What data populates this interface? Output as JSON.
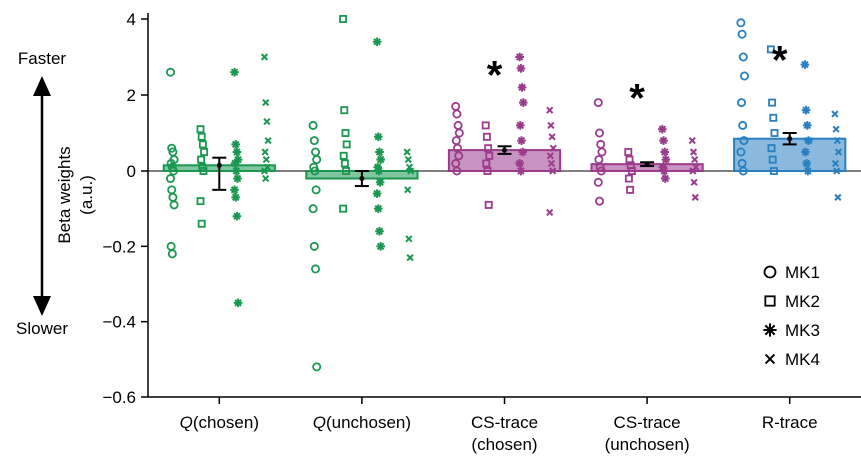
{
  "chart_data": {
    "type": "bar",
    "ylabel": "Beta weights",
    "ylabel_unit": "(a.u.)",
    "direction_labels": {
      "top": "Faster",
      "bottom": "Slower"
    },
    "y_ticks": [
      {
        "value": 4,
        "label": "4"
      },
      {
        "value": 2,
        "label": "2"
      },
      {
        "value": 0,
        "label": "0"
      },
      {
        "value": -0.2,
        "label": "−0.2"
      },
      {
        "value": -0.4,
        "label": "−0.4"
      },
      {
        "value": -0.6,
        "label": "−0.6"
      }
    ],
    "y_scale_note": "broken scale: 0 to 4 above zero, 0 to -0.6 below zero",
    "categories": [
      {
        "name": "Q(chosen)",
        "italic_prefix": "Q",
        "rest": "(chosen)",
        "line2": "",
        "color": "#1a9850",
        "mean": 0.15,
        "sem": 0.2,
        "significant": false
      },
      {
        "name": "Q(unchosen)",
        "italic_prefix": "Q",
        "rest": "(unchosen)",
        "line2": "",
        "color": "#1a9850",
        "mean": -0.02,
        "sem": 0.02,
        "significant": false
      },
      {
        "name": "CS-trace (chosen)",
        "italic_prefix": "",
        "rest": "CS-trace",
        "line2": "(chosen)",
        "color": "#9b3b8c",
        "mean": 0.55,
        "sem": 0.1,
        "significant": true
      },
      {
        "name": "CS-trace (unchosen)",
        "italic_prefix": "",
        "rest": "CS-trace",
        "line2": "(unchosen)",
        "color": "#9b3b8c",
        "mean": 0.18,
        "sem": 0.05,
        "significant": true
      },
      {
        "name": "R-trace",
        "italic_prefix": "",
        "rest": "R-trace",
        "line2": "",
        "color": "#2a7fc1",
        "mean": 0.85,
        "sem": 0.15,
        "significant": true
      }
    ],
    "points": [
      {
        "MK1": [
          2.6,
          0.6,
          0.5,
          0.3,
          0.2,
          0.1,
          0.0,
          -0.02,
          -0.05,
          -0.07,
          -0.09,
          -0.2,
          -0.22
        ],
        "MK2": [
          1.1,
          0.9,
          0.7,
          0.5,
          0.3,
          0.1,
          0.0,
          -0.08,
          -0.14
        ],
        "MK3": [
          2.6,
          0.7,
          0.5,
          0.3,
          0.2,
          0.0,
          -0.02,
          -0.05,
          -0.07,
          -0.12,
          -0.35
        ],
        "MK4": [
          3.0,
          1.8,
          1.3,
          0.8,
          0.5,
          0.3,
          0.1,
          0.0,
          -0.02
        ]
      },
      {
        "MK1": [
          1.2,
          0.8,
          0.5,
          0.3,
          0.1,
          0.0,
          -0.05,
          -0.1,
          -0.2,
          -0.26,
          -0.52
        ],
        "MK2": [
          4.0,
          1.6,
          1.0,
          0.7,
          0.4,
          0.2,
          0.0,
          -0.1
        ],
        "MK3": [
          3.4,
          0.9,
          0.5,
          0.3,
          0.1,
          0.0,
          -0.03,
          -0.06,
          -0.1,
          -0.16,
          -0.2
        ],
        "MK4": [
          0.5,
          0.3,
          0.1,
          0.0,
          -0.05,
          -0.18,
          -0.23
        ]
      },
      {
        "MK1": [
          1.7,
          1.5,
          1.2,
          1.0,
          0.8,
          0.6,
          0.4,
          0.2,
          0.0
        ],
        "MK2": [
          1.2,
          0.9,
          0.6,
          0.4,
          0.2,
          0.0,
          -0.09
        ],
        "MK3": [
          3.0,
          2.7,
          2.2,
          1.8,
          1.2,
          0.8,
          0.5,
          0.2,
          0.0
        ],
        "MK4": [
          1.6,
          1.2,
          0.9,
          0.6,
          0.4,
          0.2,
          0.0,
          -0.11
        ]
      },
      {
        "MK1": [
          1.8,
          1.0,
          0.7,
          0.5,
          0.3,
          0.1,
          0.0,
          -0.03,
          -0.08
        ],
        "MK2": [
          0.5,
          0.3,
          0.15,
          0.0,
          -0.02,
          -0.05
        ],
        "MK3": [
          1.1,
          0.8,
          0.5,
          0.3,
          0.1,
          0.0,
          -0.02
        ],
        "MK4": [
          0.8,
          0.5,
          0.3,
          0.1,
          0.0,
          -0.03,
          -0.07
        ]
      },
      {
        "MK1": [
          3.9,
          3.6,
          3.0,
          2.5,
          1.8,
          1.2,
          0.8,
          0.5,
          0.2,
          0.0
        ],
        "MK2": [
          3.2,
          1.8,
          1.4,
          1.0,
          0.6,
          0.3,
          0.0
        ],
        "MK3": [
          2.8,
          1.6,
          1.2,
          0.8,
          0.5,
          0.2,
          0.0
        ],
        "MK4": [
          1.5,
          1.1,
          0.8,
          0.5,
          0.2,
          0.0,
          -0.07
        ]
      }
    ],
    "legend": [
      {
        "label": "MK1",
        "marker": "circle"
      },
      {
        "label": "MK2",
        "marker": "square"
      },
      {
        "label": "MK3",
        "marker": "asterisk"
      },
      {
        "label": "MK4",
        "marker": "cross"
      }
    ],
    "legend_position": "bottom-right",
    "significance_symbol": "*",
    "grid": false
  }
}
